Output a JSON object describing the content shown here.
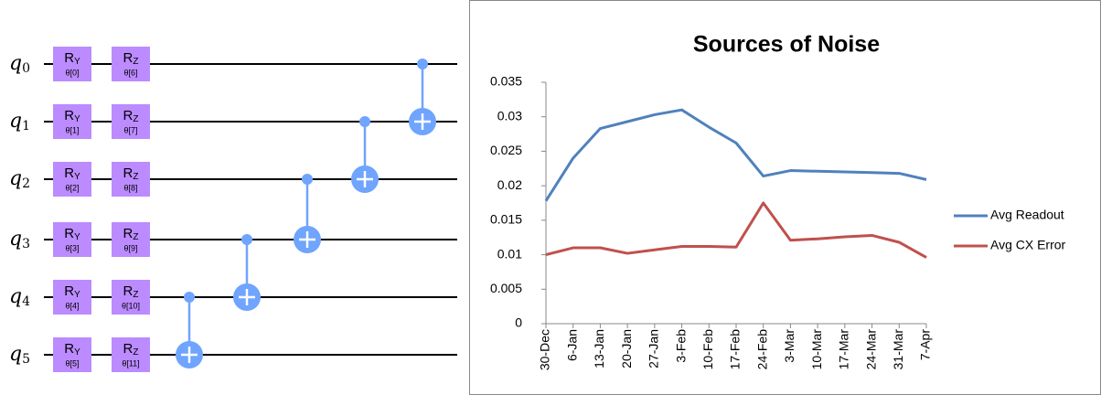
{
  "circuit": {
    "qubits": [
      {
        "name": "q",
        "index": "0"
      },
      {
        "name": "q",
        "index": "1"
      },
      {
        "name": "q",
        "index": "2"
      },
      {
        "name": "q",
        "index": "3"
      },
      {
        "name": "q",
        "index": "4"
      },
      {
        "name": "q",
        "index": "5"
      }
    ],
    "gates": [
      [
        {
          "name": "R",
          "sub": "Y",
          "param": "θ[0]"
        },
        {
          "name": "R",
          "sub": "Z",
          "param": "θ[6]"
        }
      ],
      [
        {
          "name": "R",
          "sub": "Y",
          "param": "θ[1]"
        },
        {
          "name": "R",
          "sub": "Z",
          "param": "θ[7]"
        }
      ],
      [
        {
          "name": "R",
          "sub": "Y",
          "param": "θ[2]"
        },
        {
          "name": "R",
          "sub": "Z",
          "param": "θ[8]"
        }
      ],
      [
        {
          "name": "R",
          "sub": "Y",
          "param": "θ[3]"
        },
        {
          "name": "R",
          "sub": "Z",
          "param": "θ[9]"
        }
      ],
      [
        {
          "name": "R",
          "sub": "Y",
          "param": "θ[4]"
        },
        {
          "name": "R",
          "sub": "Z",
          "param": "θ[10]"
        }
      ],
      [
        {
          "name": "R",
          "sub": "Y",
          "param": "θ[5]"
        },
        {
          "name": "R",
          "sub": "Z",
          "param": "θ[11]"
        }
      ]
    ]
  },
  "chart_data": {
    "type": "line",
    "title": "Sources of Noise",
    "categories": [
      "30-Dec",
      "6-Jan",
      "13-Jan",
      "20-Jan",
      "27-Jan",
      "3-Feb",
      "10-Feb",
      "17-Feb",
      "24-Feb",
      "3-Mar",
      "10-Mar",
      "17-Mar",
      "24-Mar",
      "31-Mar",
      "7-Apr"
    ],
    "series": [
      {
        "name": "Avg Readout",
        "color": "#4f81bd",
        "values": [
          0.0178,
          0.024,
          0.0283,
          0.0293,
          0.0303,
          0.031,
          0.0285,
          0.0262,
          0.0214,
          0.0222,
          0.0221,
          0.022,
          0.0219,
          0.0218,
          0.0209
        ]
      },
      {
        "name": "Avg CX Error",
        "color": "#c0504d",
        "values": [
          0.01,
          0.011,
          0.011,
          0.0102,
          0.0107,
          0.0112,
          0.0112,
          0.0111,
          0.0175,
          0.0121,
          0.0123,
          0.0126,
          0.0128,
          0.0118,
          0.0096
        ]
      }
    ],
    "ylim": [
      0,
      0.035
    ],
    "yticks": [
      0,
      0.005,
      0.01,
      0.015,
      0.02,
      0.025,
      0.03,
      0.035
    ],
    "legend": "right"
  }
}
